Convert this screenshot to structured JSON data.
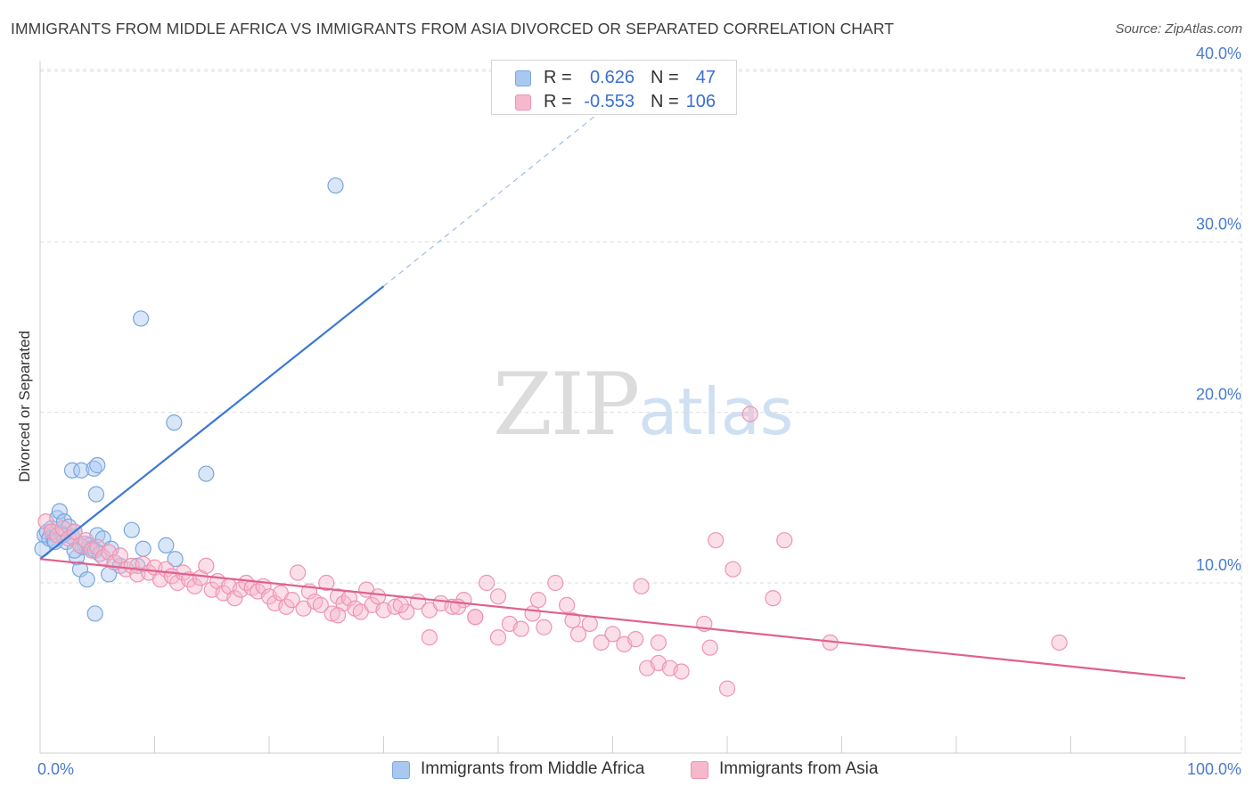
{
  "title": "IMMIGRANTS FROM MIDDLE AFRICA VS IMMIGRANTS FROM ASIA DIVORCED OR SEPARATED CORRELATION CHART",
  "source": "Source: ZipAtlas.com",
  "watermark": {
    "zip": "ZIP",
    "atlas": "atlas"
  },
  "legend_top": {
    "rows": [
      {
        "r_label": "R =",
        "r_value": "0.626",
        "n_label": "N =",
        "n_value": "47",
        "color": "#a9c8f0"
      },
      {
        "r_label": "R =",
        "r_value": "-0.553",
        "n_label": "N =",
        "n_value": "106",
        "color": "#f7b8cc"
      }
    ]
  },
  "chart_data": {
    "type": "scatter",
    "title": "IMMIGRANTS FROM MIDDLE AFRICA VS IMMIGRANTS FROM ASIA DIVORCED OR SEPARATED CORRELATION CHART",
    "xlabel": "",
    "ylabel": "Divorced or Separated",
    "xlim": [
      0,
      100
    ],
    "ylim": [
      0,
      42
    ],
    "x_tick_labels": [
      "0.0%",
      "100.0%"
    ],
    "y_ticks": [
      10,
      20,
      30,
      40
    ],
    "y_tick_labels": [
      "10.0%",
      "20.0%",
      "30.0%",
      "40.0%"
    ],
    "grid": true,
    "series": [
      {
        "name": "Immigrants from Middle Africa",
        "color": "#a9c8f0",
        "stroke": "#7aa6e0",
        "trend": {
          "x0": 0,
          "y0": 11.4,
          "x1": 30,
          "y1": 27.4,
          "dash_to_x": 52,
          "dash_to_y": 39.3,
          "color": "#3a78d4"
        },
        "points": [
          [
            0.2,
            12.0
          ],
          [
            0.4,
            12.8
          ],
          [
            0.6,
            13.0
          ],
          [
            0.8,
            12.6
          ],
          [
            1.0,
            13.2
          ],
          [
            1.2,
            12.5
          ],
          [
            1.5,
            13.8
          ],
          [
            1.7,
            14.2
          ],
          [
            1.9,
            12.9
          ],
          [
            2.1,
            13.6
          ],
          [
            2.3,
            12.4
          ],
          [
            2.5,
            13.3
          ],
          [
            2.8,
            12.7
          ],
          [
            3.0,
            13.0
          ],
          [
            3.2,
            11.5
          ],
          [
            3.5,
            10.8
          ],
          [
            3.7,
            12.1
          ],
          [
            3.9,
            12.3
          ],
          [
            4.1,
            10.2
          ],
          [
            4.3,
            12.2
          ],
          [
            4.5,
            12.0
          ],
          [
            4.8,
            11.9
          ],
          [
            5.0,
            12.8
          ],
          [
            5.2,
            11.7
          ],
          [
            5.5,
            12.6
          ],
          [
            2.8,
            16.6
          ],
          [
            3.6,
            16.6
          ],
          [
            4.7,
            16.7
          ],
          [
            4.9,
            15.2
          ],
          [
            5.0,
            16.9
          ],
          [
            4.8,
            8.2
          ],
          [
            6.0,
            10.5
          ],
          [
            6.5,
            11.2
          ],
          [
            7.0,
            11.0
          ],
          [
            8.0,
            13.1
          ],
          [
            8.5,
            11.0
          ],
          [
            9.0,
            12.0
          ],
          [
            11.0,
            12.2
          ],
          [
            11.8,
            11.4
          ],
          [
            8.8,
            25.5
          ],
          [
            11.7,
            19.4
          ],
          [
            14.5,
            16.4
          ],
          [
            25.8,
            33.3
          ],
          [
            2.0,
            12.8
          ],
          [
            3.0,
            11.9
          ],
          [
            1.3,
            12.4
          ],
          [
            6.2,
            12.0
          ]
        ]
      },
      {
        "name": "Immigrants from Asia",
        "color": "#f7b8cc",
        "stroke": "#ee94b1",
        "trend": {
          "x0": 0,
          "y0": 11.4,
          "x1": 100,
          "y1": 4.4,
          "color": "#e0608e"
        },
        "points": [
          [
            0.5,
            13.6
          ],
          [
            1.0,
            13.0
          ],
          [
            1.5,
            12.8
          ],
          [
            2.0,
            13.2
          ],
          [
            2.5,
            12.6
          ],
          [
            3.0,
            13.0
          ],
          [
            3.5,
            12.2
          ],
          [
            4.0,
            12.5
          ],
          [
            4.5,
            11.9
          ],
          [
            5.0,
            12.1
          ],
          [
            5.5,
            11.5
          ],
          [
            6.0,
            11.8
          ],
          [
            6.5,
            11.2
          ],
          [
            7.0,
            11.6
          ],
          [
            7.5,
            10.8
          ],
          [
            8.0,
            11.0
          ],
          [
            8.5,
            10.5
          ],
          [
            9.0,
            11.1
          ],
          [
            9.5,
            10.6
          ],
          [
            10.0,
            10.9
          ],
          [
            10.5,
            10.2
          ],
          [
            11.0,
            10.8
          ],
          [
            11.5,
            10.4
          ],
          [
            12.0,
            10.0
          ],
          [
            12.5,
            10.6
          ],
          [
            13.0,
            10.2
          ],
          [
            13.5,
            9.8
          ],
          [
            14.0,
            10.3
          ],
          [
            14.5,
            11.0
          ],
          [
            15.0,
            9.6
          ],
          [
            15.5,
            10.1
          ],
          [
            16.0,
            9.4
          ],
          [
            16.5,
            9.8
          ],
          [
            17.0,
            9.1
          ],
          [
            17.5,
            9.6
          ],
          [
            18.0,
            10.0
          ],
          [
            18.5,
            9.7
          ],
          [
            19.0,
            9.5
          ],
          [
            19.5,
            9.8
          ],
          [
            20.0,
            9.2
          ],
          [
            20.5,
            8.8
          ],
          [
            21.0,
            9.4
          ],
          [
            21.5,
            8.6
          ],
          [
            22.0,
            9.0
          ],
          [
            22.5,
            10.6
          ],
          [
            23.0,
            8.5
          ],
          [
            23.5,
            9.5
          ],
          [
            24.0,
            8.9
          ],
          [
            24.5,
            8.7
          ],
          [
            25.0,
            10.0
          ],
          [
            25.5,
            8.2
          ],
          [
            26.0,
            9.2
          ],
          [
            26.5,
            8.8
          ],
          [
            27.0,
            9.1
          ],
          [
            27.5,
            8.5
          ],
          [
            28.0,
            8.3
          ],
          [
            28.5,
            9.6
          ],
          [
            29.0,
            8.7
          ],
          [
            29.5,
            9.2
          ],
          [
            30.0,
            8.4
          ],
          [
            31.0,
            8.6
          ],
          [
            32.0,
            8.3
          ],
          [
            33.0,
            8.9
          ],
          [
            34.0,
            8.4
          ],
          [
            35.0,
            8.8
          ],
          [
            36.0,
            8.6
          ],
          [
            37.0,
            9.0
          ],
          [
            38.0,
            8.0
          ],
          [
            39.0,
            10.0
          ],
          [
            40.0,
            9.2
          ],
          [
            41.0,
            7.6
          ],
          [
            42.0,
            7.3
          ],
          [
            43.0,
            8.2
          ],
          [
            44.0,
            7.4
          ],
          [
            45.0,
            10.0
          ],
          [
            46.0,
            8.7
          ],
          [
            47.0,
            7.0
          ],
          [
            48.0,
            7.6
          ],
          [
            49.0,
            6.5
          ],
          [
            50.0,
            7.0
          ],
          [
            51.0,
            6.4
          ],
          [
            52.0,
            6.7
          ],
          [
            53.0,
            5.0
          ],
          [
            54.0,
            5.3
          ],
          [
            55.0,
            5.0
          ],
          [
            56.0,
            4.8
          ],
          [
            58.0,
            7.6
          ],
          [
            58.5,
            6.2
          ],
          [
            59.0,
            12.5
          ],
          [
            60.0,
            3.8
          ],
          [
            60.5,
            10.8
          ],
          [
            62.0,
            19.9
          ],
          [
            64.0,
            9.1
          ],
          [
            65.0,
            12.5
          ],
          [
            69.0,
            6.5
          ],
          [
            89.0,
            6.5
          ],
          [
            26.0,
            8.1
          ],
          [
            31.5,
            8.7
          ],
          [
            36.5,
            8.6
          ],
          [
            43.5,
            9.0
          ],
          [
            46.5,
            7.8
          ],
          [
            52.5,
            9.8
          ],
          [
            34.0,
            6.8
          ],
          [
            38.0,
            8.0
          ],
          [
            40.0,
            6.8
          ],
          [
            54.0,
            6.5
          ]
        ]
      }
    ]
  },
  "bottom_legend": {
    "items": [
      {
        "label": "Immigrants from Middle Africa",
        "color": "#a9c8f0"
      },
      {
        "label": "Immigrants from Asia",
        "color": "#f7b8cc"
      }
    ]
  }
}
